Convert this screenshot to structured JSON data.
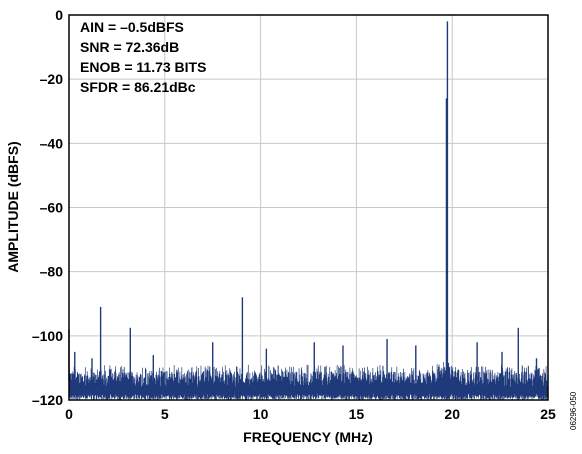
{
  "chart_data": {
    "type": "line",
    "title": "",
    "xlabel": "FREQUENCY (MHz)",
    "ylabel": "AMPLITUDE (dBFS)",
    "xlim": [
      0,
      25
    ],
    "ylim": [
      -120,
      0
    ],
    "x_ticks": [
      "0",
      "5",
      "10",
      "15",
      "20",
      "25"
    ],
    "y_ticks": [
      "0",
      "–20",
      "–40",
      "–60",
      "–80",
      "–100",
      "–120"
    ],
    "grid": true,
    "series_color": "#1f3a7a",
    "annotations": [
      "AIN = –0.5dBFS",
      "SNR = 72.36dB",
      "ENOB = 11.73 BITS",
      "SFDR = 86.21dBc"
    ],
    "noise_floor_dbfs": [
      -120,
      -109
    ],
    "spurs": [
      {
        "x": 0.0,
        "y": -98
      },
      {
        "x": 0.3,
        "y": -105
      },
      {
        "x": 1.2,
        "y": -107
      },
      {
        "x": 1.65,
        "y": -91
      },
      {
        "x": 3.2,
        "y": -97.5
      },
      {
        "x": 4.4,
        "y": -106
      },
      {
        "x": 7.5,
        "y": -102
      },
      {
        "x": 9.05,
        "y": -88
      },
      {
        "x": 10.3,
        "y": -104
      },
      {
        "x": 12.8,
        "y": -102
      },
      {
        "x": 14.3,
        "y": -103
      },
      {
        "x": 16.6,
        "y": -101
      },
      {
        "x": 18.1,
        "y": -103
      },
      {
        "x": 19.7,
        "y": -26
      },
      {
        "x": 19.75,
        "y": -2
      },
      {
        "x": 21.3,
        "y": -102
      },
      {
        "x": 22.6,
        "y": -105
      },
      {
        "x": 23.45,
        "y": -97.5
      },
      {
        "x": 24.4,
        "y": -107
      }
    ],
    "figure_id": "06296-050"
  }
}
